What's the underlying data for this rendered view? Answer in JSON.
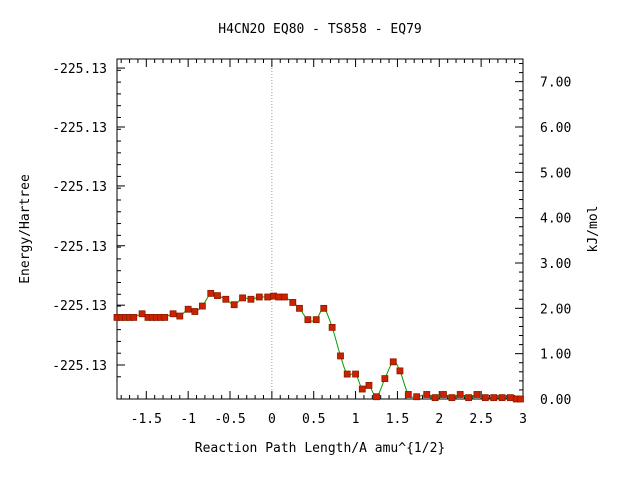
{
  "chart_data": {
    "type": "line",
    "title": "H4CN2O   EQ80 - TS858 - EQ79",
    "xlabel": "Reaction Path Length/A amu^{1/2}",
    "ylabel_left": "Energy/Hartree",
    "ylabel_right": "kJ/mol",
    "xlim": [
      -1.85,
      3.0
    ],
    "ylim_kj": [
      0.0,
      7.5
    ],
    "x_ticks": [
      "-1.5",
      "-1",
      "-0.5",
      "0",
      "0.5",
      "1",
      "1.5",
      "2",
      "2.5",
      "3"
    ],
    "x_tick_values": [
      -1.5,
      -1,
      -0.5,
      0,
      0.5,
      1,
      1.5,
      2,
      2.5,
      3
    ],
    "left_ticks": [
      "-225.13",
      "-225.13",
      "-225.13",
      "-225.13",
      "-225.13",
      "-225.13"
    ],
    "left_tick_values_kj": [
      7.3,
      6.0,
      4.7,
      3.38,
      2.07,
      0.75
    ],
    "right_ticks": [
      "7.00",
      "6.00",
      "5.00",
      "4.00",
      "3.00",
      "2.00",
      "1.00",
      "0.00"
    ],
    "right_tick_values": [
      7,
      6,
      5,
      4,
      3,
      2,
      1,
      0
    ],
    "ts_marker_x": 0,
    "grid": false,
    "colors": {
      "line": "#00a000",
      "marker_fill": "#cc2200",
      "marker_edge": "#8b1a00",
      "ts_line": "#999999"
    },
    "series": [
      {
        "points": [
          [
            -1.85,
            1.8
          ],
          [
            -1.8,
            1.8
          ],
          [
            -1.75,
            1.8
          ],
          [
            -1.7,
            1.8
          ],
          [
            -1.65,
            1.8
          ],
          [
            -1.55,
            1.88
          ],
          [
            -1.48,
            1.8
          ],
          [
            -1.43,
            1.8
          ],
          [
            -1.38,
            1.8
          ],
          [
            -1.33,
            1.8
          ],
          [
            -1.28,
            1.8
          ],
          [
            -1.18,
            1.88
          ],
          [
            -1.1,
            1.83
          ],
          [
            -1.0,
            1.98
          ],
          [
            -0.92,
            1.93
          ],
          [
            -0.83,
            2.05
          ],
          [
            -0.73,
            2.33
          ],
          [
            -0.65,
            2.28
          ],
          [
            -0.55,
            2.2
          ],
          [
            -0.45,
            2.08
          ],
          [
            -0.35,
            2.23
          ],
          [
            -0.25,
            2.2
          ],
          [
            -0.15,
            2.25
          ],
          [
            -0.05,
            2.25
          ],
          [
            0.02,
            2.27
          ],
          [
            0.08,
            2.25
          ],
          [
            0.15,
            2.25
          ],
          [
            0.25,
            2.13
          ],
          [
            0.33,
            2.0
          ],
          [
            0.43,
            1.75
          ],
          [
            0.53,
            1.75
          ],
          [
            0.62,
            2.0
          ],
          [
            0.72,
            1.58
          ],
          [
            0.82,
            0.95
          ],
          [
            0.9,
            0.55
          ],
          [
            1.0,
            0.55
          ],
          [
            1.08,
            0.22
          ],
          [
            1.16,
            0.3
          ],
          [
            1.25,
            0.05
          ],
          [
            1.35,
            0.45
          ],
          [
            1.45,
            0.82
          ],
          [
            1.53,
            0.62
          ],
          [
            1.63,
            0.1
          ],
          [
            1.73,
            0.05
          ],
          [
            1.85,
            0.1
          ],
          [
            1.95,
            0.03
          ],
          [
            2.05,
            0.1
          ],
          [
            2.15,
            0.03
          ],
          [
            2.25,
            0.1
          ],
          [
            2.35,
            0.03
          ],
          [
            2.45,
            0.1
          ],
          [
            2.55,
            0.03
          ],
          [
            2.65,
            0.03
          ],
          [
            2.75,
            0.03
          ],
          [
            2.85,
            0.03
          ],
          [
            2.92,
            0.0
          ],
          [
            2.97,
            0.0
          ]
        ]
      }
    ]
  }
}
